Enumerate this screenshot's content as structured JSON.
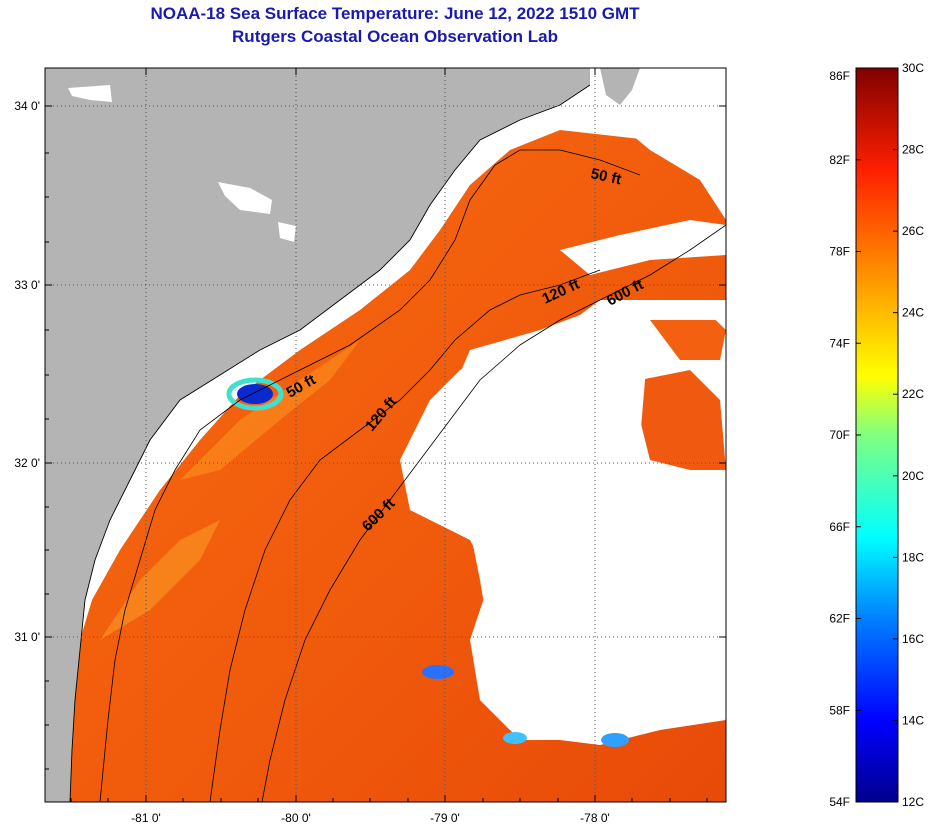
{
  "title": {
    "line1": "NOAA-18 Sea Surface Temperature:  June 12, 2022 1510 GMT",
    "line2": "Rutgers Coastal Ocean Observation Lab"
  },
  "map": {
    "lat_labels": [
      "34 0'",
      "33 0'",
      "32 0'",
      "31 0'"
    ],
    "lon_labels": [
      "-81 0'",
      "-80 0'",
      "-79 0'",
      "-78 0'"
    ],
    "colors": {
      "land": "#b4b4b4",
      "cloud": "#ffffff",
      "gridline": "#555555"
    },
    "contour_labels": [
      {
        "text": "50 ft"
      },
      {
        "text": "120 ft"
      },
      {
        "text": "600 ft"
      },
      {
        "text": "50 ft"
      },
      {
        "text": "120 ft"
      },
      {
        "text": "600 ft"
      }
    ]
  },
  "colorbar": {
    "fahrenheit_labels": [
      "86F",
      "82F",
      "78F",
      "74F",
      "70F",
      "66F",
      "62F",
      "58F",
      "54F"
    ],
    "celsius_labels": [
      "30C",
      "28C",
      "26C",
      "24C",
      "22C",
      "20C",
      "18C",
      "16C",
      "14C",
      "12C"
    ],
    "range_f": [
      54,
      86
    ],
    "range_c": [
      12,
      30
    ]
  }
}
